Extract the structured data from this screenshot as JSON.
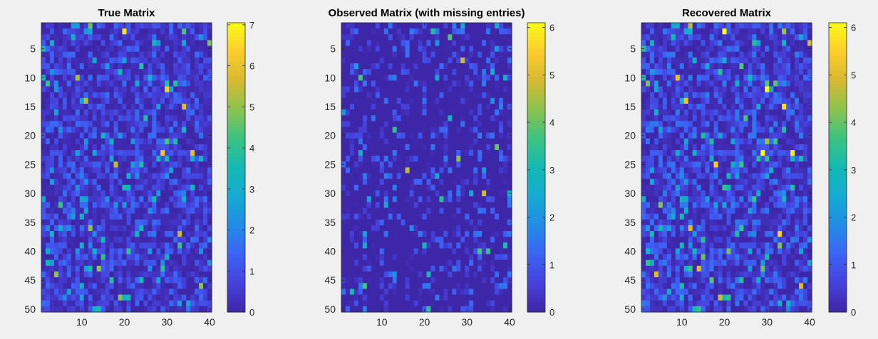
{
  "figure": {
    "background": "#f0f0f0"
  },
  "chart_data": [
    {
      "type": "heatmap",
      "title": "True Matrix",
      "rows": 50,
      "cols": 40,
      "xlim": [
        0.5,
        40.5
      ],
      "ylim": [
        0.5,
        50.5
      ],
      "xticks": [
        10,
        20,
        30,
        40
      ],
      "yticks": [
        5,
        10,
        15,
        20,
        25,
        30,
        35,
        40,
        45,
        50
      ],
      "clim": [
        0,
        7.05
      ],
      "colorbar_ticks": [
        0,
        1,
        2,
        3,
        4,
        5,
        6,
        7
      ],
      "colormap": "parula",
      "seed": 101
    },
    {
      "type": "heatmap",
      "title": "Observed Matrix (with missing entries)",
      "rows": 50,
      "cols": 40,
      "xlim": [
        0.5,
        40.5
      ],
      "ylim": [
        0.5,
        50.5
      ],
      "xticks": [
        10,
        20,
        30,
        40
      ],
      "yticks": [
        5,
        10,
        15,
        20,
        25,
        30,
        35,
        40,
        45,
        50
      ],
      "clim": [
        0,
        6.1
      ],
      "colorbar_ticks": [
        0,
        1,
        2,
        3,
        4,
        5,
        6
      ],
      "colormap": "parula",
      "seed": 202
    },
    {
      "type": "heatmap",
      "title": "Recovered Matrix",
      "rows": 50,
      "cols": 40,
      "xlim": [
        0.5,
        40.5
      ],
      "ylim": [
        0.5,
        50.5
      ],
      "xticks": [
        10,
        20,
        30,
        40
      ],
      "yticks": [
        5,
        10,
        15,
        20,
        25,
        30,
        35,
        40,
        45,
        50
      ],
      "clim": [
        0,
        6.1
      ],
      "colorbar_ticks": [
        0,
        1,
        2,
        3,
        4,
        5,
        6
      ],
      "colormap": "parula",
      "seed": 101
    }
  ]
}
